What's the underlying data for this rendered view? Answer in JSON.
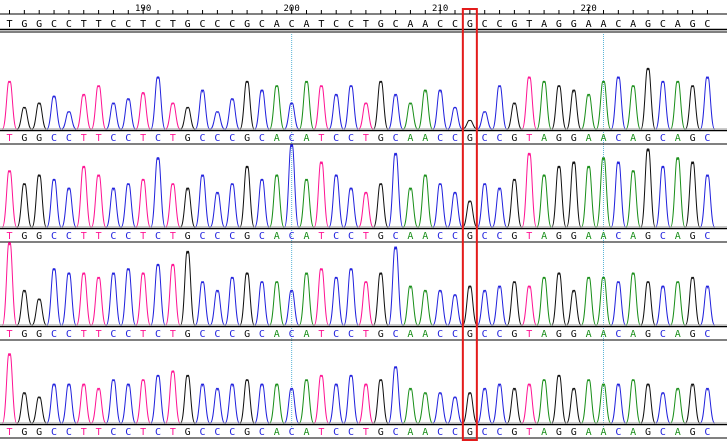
{
  "reference": {
    "sequence": "TGGCCTTCCTCTGCCCGCACATCCTGCAACCGCCGTAGGAACAGCAGC",
    "position_labels": [
      "190",
      "200",
      "210",
      "220"
    ]
  },
  "tracks": [
    {
      "sequence": "TGGCCTTCCTCTGCCCGCACATCCTGCAACCGCCGTAGGAACAGCAGC",
      "heights": [
        0.55,
        0.25,
        0.3,
        0.38,
        0.2,
        0.4,
        0.5,
        0.3,
        0.35,
        0.42,
        0.6,
        0.3,
        0.25,
        0.45,
        0.2,
        0.35,
        0.55,
        0.45,
        0.5,
        0.3,
        0.55,
        0.5,
        0.4,
        0.5,
        0.3,
        0.55,
        0.4,
        0.3,
        0.45,
        0.45,
        0.25,
        0.1,
        0.2,
        0.5,
        0.3,
        0.6,
        0.55,
        0.5,
        0.45,
        0.4,
        0.55,
        0.6,
        0.5,
        0.7,
        0.55,
        0.55,
        0.5,
        0.6
      ]
    },
    {
      "sequence": "TGGCCTTCCTCTGCCCGCACATCCTGCAACCGCCGTAGGAACAGCAGC",
      "heights": [
        0.65,
        0.5,
        0.6,
        0.55,
        0.45,
        0.7,
        0.6,
        0.45,
        0.5,
        0.55,
        0.8,
        0.5,
        0.45,
        0.6,
        0.4,
        0.5,
        0.7,
        0.55,
        0.6,
        0.95,
        0.55,
        0.75,
        0.6,
        0.45,
        0.4,
        0.5,
        0.85,
        0.45,
        0.6,
        0.5,
        0.4,
        0.3,
        0.5,
        0.45,
        0.55,
        0.85,
        0.6,
        0.7,
        0.75,
        0.7,
        0.8,
        0.75,
        0.65,
        0.9,
        0.7,
        0.8,
        0.75,
        0.6
      ]
    },
    {
      "sequence": "TGGCCTTCCTCTGCCCGCACATCCTGCAACCGCCGTAGGAACAGCAGC",
      "heights": [
        0.95,
        0.4,
        0.3,
        0.65,
        0.6,
        0.6,
        0.55,
        0.6,
        0.65,
        0.6,
        0.7,
        0.7,
        0.85,
        0.5,
        0.4,
        0.55,
        0.6,
        0.5,
        0.5,
        0.4,
        0.6,
        0.65,
        0.55,
        0.65,
        0.5,
        0.6,
        0.9,
        0.45,
        0.4,
        0.4,
        0.35,
        0.45,
        0.4,
        0.45,
        0.5,
        0.45,
        0.55,
        0.6,
        0.4,
        0.55,
        0.55,
        0.5,
        0.6,
        0.5,
        0.45,
        0.5,
        0.55,
        0.45
      ]
    },
    {
      "sequence": "TGGCCTTCCTCTGCCCGCACATCCTGCAACCGCCGTAGGAACAGCAGC",
      "heights": [
        0.8,
        0.35,
        0.3,
        0.45,
        0.45,
        0.45,
        0.4,
        0.5,
        0.45,
        0.5,
        0.55,
        0.6,
        0.55,
        0.45,
        0.4,
        0.45,
        0.5,
        0.45,
        0.45,
        0.4,
        0.5,
        0.55,
        0.45,
        0.55,
        0.45,
        0.5,
        0.65,
        0.4,
        0.35,
        0.35,
        0.3,
        0.35,
        0.4,
        0.45,
        0.4,
        0.45,
        0.5,
        0.55,
        0.4,
        0.5,
        0.45,
        0.45,
        0.5,
        0.45,
        0.35,
        0.4,
        0.45,
        0.4
      ]
    }
  ],
  "highlight_index": 31,
  "guide_indices": [
    19,
    40
  ],
  "colors": {
    "A": "#1a8f1a",
    "C": "#2222dd",
    "G": "#111111",
    "T": "#ff1493",
    "highlight": "#e31b1b",
    "guide": "#5ab4d6",
    "baseline": "#000000"
  }
}
